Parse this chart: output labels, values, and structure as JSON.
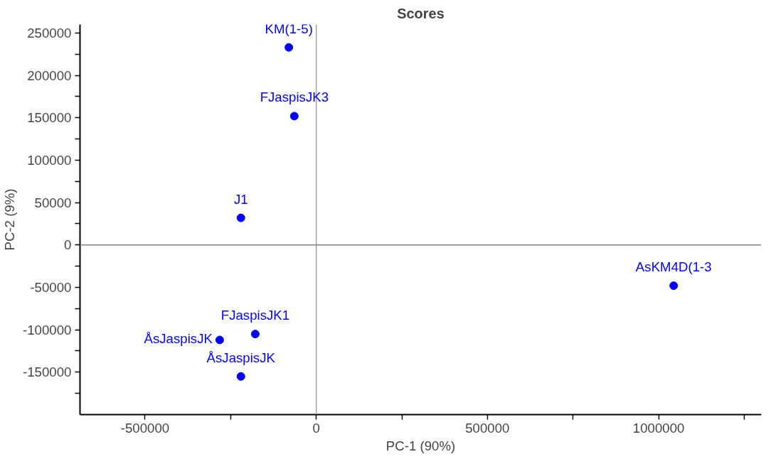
{
  "chart_data": {
    "type": "scatter",
    "title": "Scores",
    "xlabel": "PC-1 (90%)",
    "ylabel": "PC-2 (9%)",
    "x": [
      -80000,
      -64000,
      -220000,
      1044000,
      -178000,
      -282000,
      -220000
    ],
    "series": [
      {
        "color": "#0000ff",
        "values": [
          233000,
          152000,
          32000,
          -48000,
          -105000,
          -112000,
          -155000
        ]
      }
    ],
    "marker": "circle",
    "grid": false,
    "xlim": [
      -690000,
      1300000
    ],
    "ylim": [
      -200000,
      260000
    ],
    "xticks": [
      {
        "value": -500000,
        "label": "-500000"
      },
      {
        "value": -250000,
        "label": null
      },
      0,
      {
        "value": 250000,
        "label": null
      },
      500000,
      {
        "value": 750000,
        "label": null
      },
      1000000,
      {
        "value": 1250000,
        "label": null
      }
    ],
    "yticks": [
      {
        "value": -175000,
        "label": null
      },
      -150000,
      {
        "value": -125000,
        "label": null
      },
      -100000,
      {
        "value": -75000,
        "label": null
      },
      -50000,
      {
        "value": -25000,
        "label": null
      },
      0,
      {
        "value": 25000,
        "label": null
      },
      50000,
      {
        "value": 75000,
        "label": null
      },
      100000,
      {
        "value": 125000,
        "label": null
      },
      150000,
      {
        "value": 175000,
        "label": null
      },
      200000,
      {
        "value": 225000,
        "label": null
      },
      250000
    ],
    "ref_lines": [
      {
        "axis": "x",
        "value": 0,
        "color": "#a0a0a0"
      },
      {
        "axis": "y",
        "value": 0,
        "color": "#808080"
      }
    ],
    "annotations": [
      {
        "text": "KM(1-5)",
        "x": -80000,
        "y": 233000
      },
      {
        "text": "FJaspisJK3",
        "x": -64000,
        "y": 152000
      },
      {
        "text": "J1",
        "x": -220000,
        "y": 32000
      },
      {
        "text": "AsKM4D(1-3",
        "x": 1044000,
        "y": -48000
      },
      {
        "text": "FJaspisJK1",
        "x": -178000,
        "y": -105000
      },
      {
        "text": "ÅsJaspisJK",
        "x": -282000,
        "y": -112000
      },
      {
        "text": "ÅsJaspisJK",
        "x": -220000,
        "y": -155000
      }
    ]
  }
}
